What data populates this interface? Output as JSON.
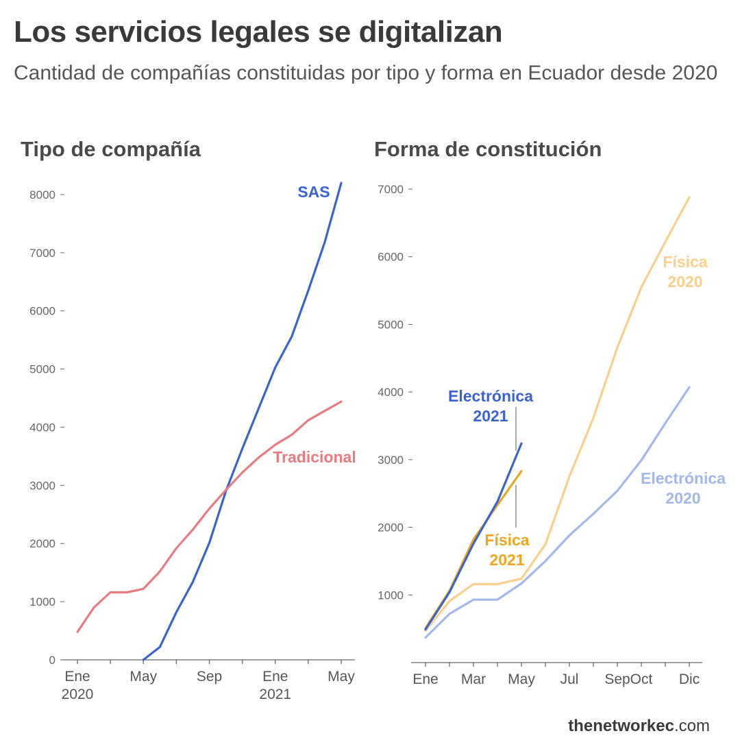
{
  "header": {
    "title": "Los servicios legales se digitalizan",
    "subtitle": "Cantidad de compañías constituidas por tipo y forma en Ecuador desde 2020"
  },
  "credit": {
    "bold": "thenetworkec",
    "rest": ".com"
  },
  "colors": {
    "sas": "#3a62d1",
    "tradicional": "#e87b82",
    "electronica_2021": "#3a62d1",
    "fisica_2021": "#f0a520",
    "fisica_2020": "#f8d08a",
    "electronica_2020": "#a2b7ea",
    "axis": "#666666"
  },
  "chart_data": [
    {
      "type": "line",
      "title": "Tipo de compañía",
      "x_ticks": [
        {
          "x": 0,
          "label": "Ene",
          "label2": "2020"
        },
        {
          "x": 2,
          "label": ""
        },
        {
          "x": 4,
          "label": "May"
        },
        {
          "x": 6,
          "label": ""
        },
        {
          "x": 8,
          "label": "Sep"
        },
        {
          "x": 10,
          "label": ""
        },
        {
          "x": 12,
          "label": "Ene",
          "label2": "2021"
        },
        {
          "x": 14,
          "label": ""
        },
        {
          "x": 16,
          "label": "May"
        }
      ],
      "xlim": [
        0,
        16
      ],
      "y_ticks": [
        0,
        1000,
        2000,
        3000,
        4000,
        5000,
        6000,
        7000,
        8000
      ],
      "ylim": [
        0,
        8200
      ],
      "series": [
        {
          "name": "SAS",
          "color_key": "sas",
          "label_lines": [
            "SAS"
          ],
          "x": [
            4,
            5,
            6,
            7,
            8,
            9,
            10,
            11,
            12,
            13,
            14,
            15,
            16
          ],
          "values": [
            0,
            220,
            820,
            1340,
            2010,
            2900,
            3630,
            4330,
            5030,
            5560,
            6350,
            7180,
            8200
          ]
        },
        {
          "name": "Tradicional",
          "color_key": "tradicional",
          "label_lines": [
            "Tradicional"
          ],
          "x": [
            0,
            1,
            2,
            3,
            4,
            5,
            6,
            7,
            8,
            9,
            10,
            11,
            12,
            13,
            14,
            15,
            16
          ],
          "values": [
            480,
            900,
            1160,
            1160,
            1220,
            1520,
            1920,
            2240,
            2600,
            2920,
            3220,
            3480,
            3700,
            3870,
            4120,
            4280,
            4440
          ]
        }
      ]
    },
    {
      "type": "line",
      "title": "Forma de constitución",
      "x_ticks": [
        {
          "x": 0,
          "label": "Ene"
        },
        {
          "x": 1,
          "label": ""
        },
        {
          "x": 2,
          "label": "Mar"
        },
        {
          "x": 3,
          "label": ""
        },
        {
          "x": 4,
          "label": "May"
        },
        {
          "x": 5,
          "label": ""
        },
        {
          "x": 6,
          "label": "Jul"
        },
        {
          "x": 7,
          "label": ""
        },
        {
          "x": 8,
          "label": "Sep"
        },
        {
          "x": 9,
          "label": "Oct"
        },
        {
          "x": 10,
          "label": ""
        },
        {
          "x": 11,
          "label": "Dic"
        }
      ],
      "xlim": [
        0,
        11
      ],
      "y_ticks": [
        1000,
        2000,
        3000,
        4000,
        5000,
        6000,
        7000
      ],
      "ylim": [
        0,
        7000
      ],
      "series": [
        {
          "name": "Física 2020",
          "color_key": "fisica_2020",
          "label_lines": [
            "Física",
            "2020"
          ],
          "x": [
            0,
            1,
            2,
            3,
            4,
            5,
            6,
            7,
            8,
            9,
            10,
            11
          ],
          "values": [
            470,
            910,
            1160,
            1160,
            1240,
            1750,
            2750,
            3620,
            4660,
            5550,
            6220,
            6880
          ]
        },
        {
          "name": "Electrónica 2020",
          "color_key": "electronica_2020",
          "label_lines": [
            "Electrónica",
            "2020"
          ],
          "x": [
            0,
            1,
            2,
            3,
            4,
            5,
            6,
            7,
            8,
            9,
            10,
            11
          ],
          "values": [
            370,
            720,
            930,
            930,
            1170,
            1500,
            1880,
            2200,
            2540,
            2990,
            3540,
            4070
          ]
        },
        {
          "name": "Física 2021",
          "color_key": "fisica_2021",
          "label_lines": [
            "Física",
            "2021"
          ],
          "x": [
            0,
            1,
            2,
            3,
            4
          ],
          "values": [
            510,
            1060,
            1820,
            2330,
            2830
          ]
        },
        {
          "name": "Electrónica 2021",
          "color_key": "electronica_2021",
          "label_lines": [
            "Electrónica",
            "2021"
          ],
          "x": [
            0,
            1,
            2,
            3,
            4
          ],
          "values": [
            490,
            1040,
            1760,
            2380,
            3240
          ]
        }
      ]
    }
  ]
}
